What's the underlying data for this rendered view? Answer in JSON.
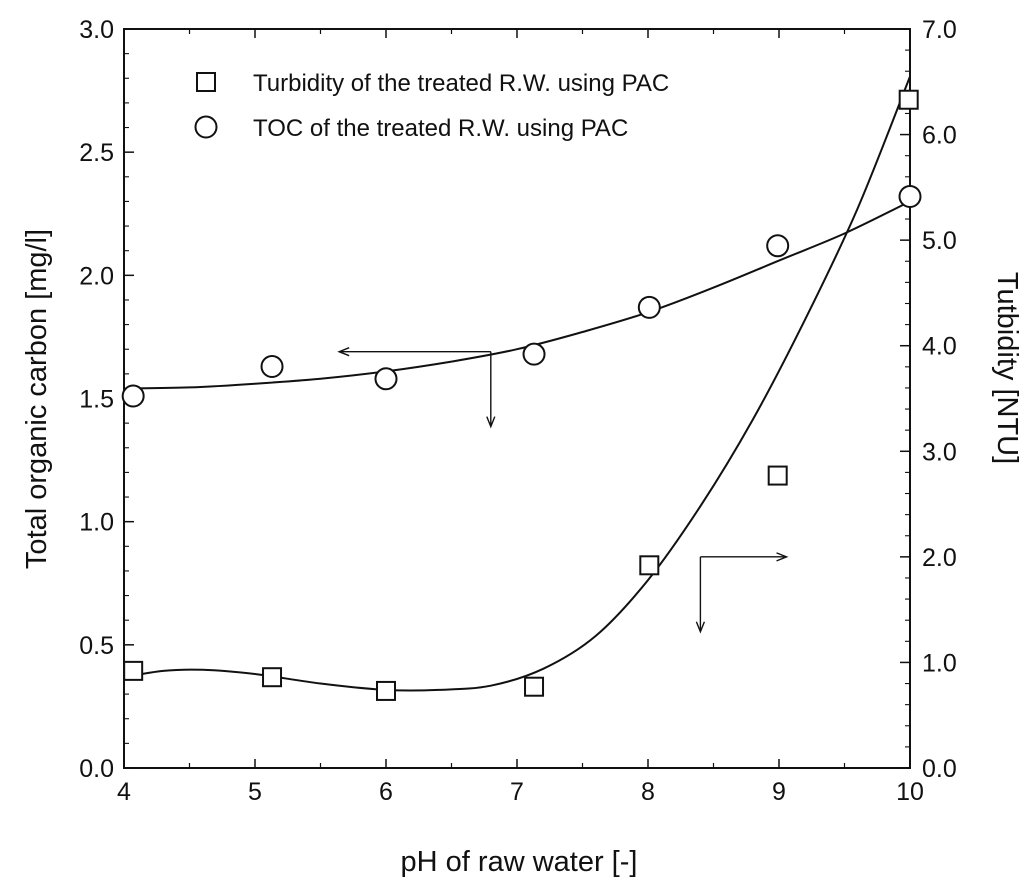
{
  "chart_data": {
    "type": "scatter",
    "title": "",
    "xlabel": "pH of raw water [-]",
    "ylabel": "Total organic carbon [mg/l]",
    "y2label": "Tutbidity [NTU]",
    "xlim": [
      4,
      10
    ],
    "ylim": [
      0,
      3
    ],
    "y2lim": [
      0,
      7
    ],
    "x_ticks": [
      "4",
      "5",
      "6",
      "7",
      "8",
      "9",
      "10"
    ],
    "y_ticks": [
      "0.0",
      "0.5",
      "1.0",
      "1.5",
      "2.0",
      "2.5",
      "3.0"
    ],
    "y2_ticks": [
      "0.0",
      "1.0",
      "2.0",
      "3.0",
      "4.0",
      "5.0",
      "6.0",
      "7.0"
    ],
    "grid": false,
    "legend_position": "top-left",
    "series": [
      {
        "name": "Turbidity of the treated R.W. using PAC",
        "marker": "square",
        "axis": "right",
        "x": [
          4.07,
          5.13,
          6.0,
          7.13,
          8.01,
          8.99,
          9.99
        ],
        "y": [
          0.92,
          0.86,
          0.73,
          0.77,
          1.92,
          2.77,
          6.33
        ]
      },
      {
        "name": "TOC of the treated R.W. using PAC",
        "marker": "circle",
        "axis": "left",
        "x": [
          4.07,
          5.13,
          6.0,
          7.13,
          8.01,
          8.99,
          10.0
        ],
        "y": [
          1.51,
          1.63,
          1.58,
          1.68,
          1.87,
          2.12,
          2.32
        ]
      }
    ],
    "fit_curves": [
      {
        "for": "TOC of the treated R.W. using PAC",
        "axis": "left",
        "x": [
          4.0,
          4.5,
          5.0,
          5.5,
          6.0,
          6.5,
          7.0,
          7.5,
          8.0,
          8.5,
          9.0,
          9.5,
          10.0
        ],
        "y": [
          1.54,
          1.545,
          1.56,
          1.58,
          1.61,
          1.65,
          1.7,
          1.77,
          1.85,
          1.95,
          2.06,
          2.17,
          2.3
        ]
      },
      {
        "for": "Turbidity of the treated R.W. using PAC",
        "axis": "right",
        "x": [
          4.0,
          4.3,
          4.6,
          5.0,
          5.5,
          6.0,
          6.4,
          6.8,
          7.2,
          7.6,
          8.0,
          8.4,
          8.8,
          9.2,
          9.6,
          10.0
        ],
        "y": [
          0.86,
          0.92,
          0.93,
          0.89,
          0.8,
          0.74,
          0.74,
          0.78,
          0.94,
          1.25,
          1.78,
          2.48,
          3.3,
          4.25,
          5.3,
          6.55
        ]
      }
    ],
    "annotations": [
      {
        "type": "arrow-corner",
        "axis": "left",
        "origin": [
          6.8,
          1.69
        ],
        "horizontal_to_x": 5.65,
        "vertical_to_y": 1.39
      },
      {
        "type": "arrow-corner",
        "axis": "right",
        "origin": [
          8.4,
          2.0
        ],
        "horizontal_to_x": 9.05,
        "vertical_to_y": 1.3
      }
    ]
  }
}
